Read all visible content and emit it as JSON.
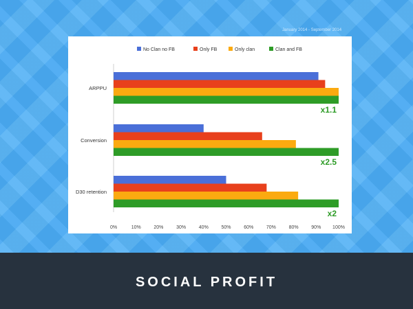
{
  "date_range": "January 2014 - September 2014",
  "footer_title": "SOCIAL PROFIT",
  "chart_data": {
    "type": "bar",
    "orientation": "horizontal",
    "categories": [
      "ARPPU",
      "Conversion",
      "D30 retention"
    ],
    "series": [
      {
        "name": "No Clan no FB",
        "color": "#4a6fd8",
        "values": [
          91,
          40,
          50
        ]
      },
      {
        "name": "Only FB",
        "color": "#e8401c",
        "values": [
          94,
          66,
          68
        ]
      },
      {
        "name": "Only clan",
        "color": "#fbaa10",
        "values": [
          100,
          81,
          82
        ]
      },
      {
        "name": "Clan and FB",
        "color": "#2e9c27",
        "values": [
          100,
          100,
          100
        ]
      }
    ],
    "annotations": [
      "x1.1",
      "x2.5",
      "x2"
    ],
    "annotation_color": "#2e9c27",
    "xlim": [
      0,
      100
    ],
    "xticks": [
      "0%",
      "10%",
      "20%",
      "30%",
      "40%",
      "50%",
      "60%",
      "70%",
      "80%",
      "90%",
      "100%"
    ],
    "legend_position": "top",
    "grid": false
  }
}
